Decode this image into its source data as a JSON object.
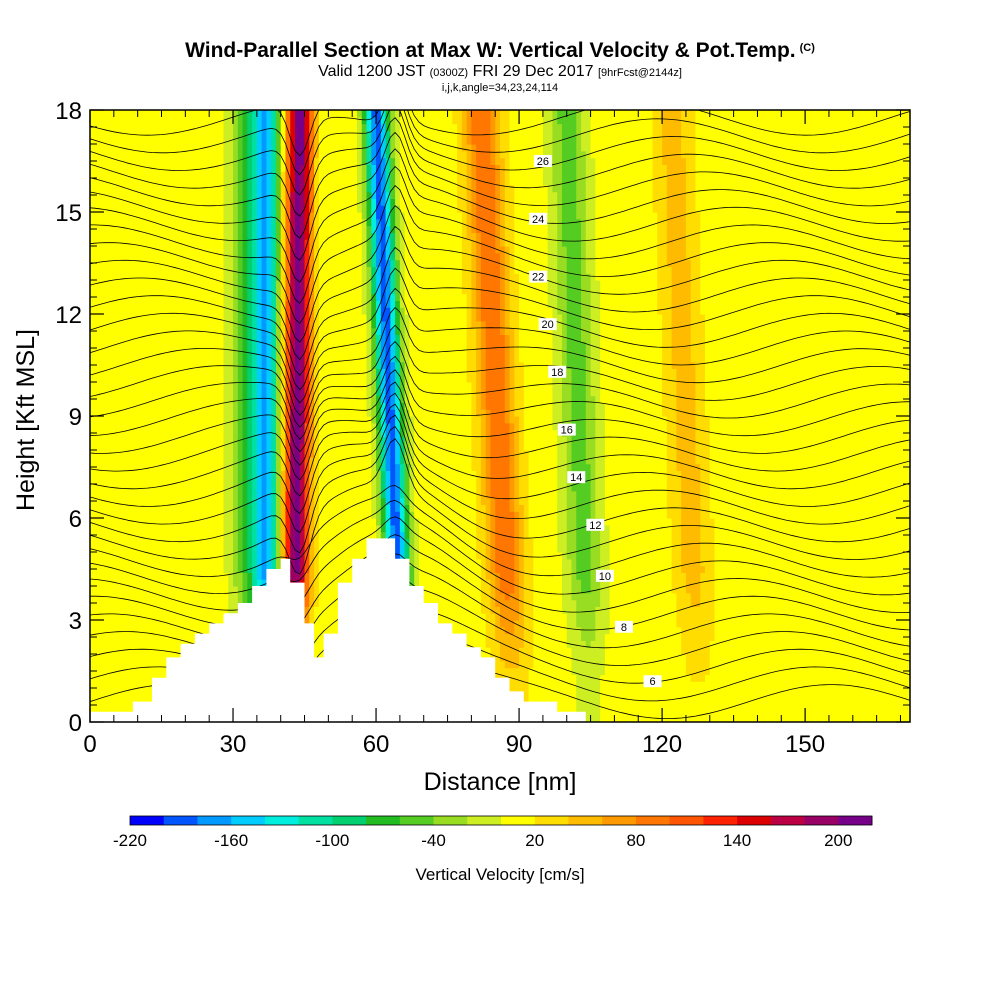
{
  "title": "Wind-Parallel Section at Max W: Vertical Velocity & Pot.Temp.",
  "copyright": "(C)",
  "subtitle_main": "Valid 1200 JST",
  "subtitle_utc": "(0300Z)",
  "subtitle_date": "FRI 29 Dec 2017",
  "subtitle_fcst": "[9hrFcst@2144z]",
  "info_line": "i,j,k,angle=34,23,24,114",
  "chart_data": {
    "type": "heatmap",
    "xlabel": "Distance [nm]",
    "ylabel": "Height [Kft MSL]",
    "xlim": [
      0,
      172
    ],
    "ylim": [
      0,
      18
    ],
    "x_ticks": [
      0,
      30,
      60,
      90,
      120,
      150
    ],
    "y_ticks": [
      0,
      3,
      6,
      9,
      12,
      15,
      18
    ],
    "colorbar": {
      "label": "Vertical Velocity [cm/s]",
      "range": [
        -220,
        220
      ],
      "tick_values": [
        -220,
        -160,
        -100,
        -40,
        20,
        80,
        140,
        200
      ],
      "tick_labels": [
        "-220",
        "-160",
        "-100",
        "-40",
        "20",
        "80",
        "140",
        "200"
      ],
      "colors": [
        "#0000ff",
        "#0055ff",
        "#0099ff",
        "#00ccff",
        "#00eedd",
        "#00e0a0",
        "#00d070",
        "#22bb22",
        "#55cc22",
        "#99dd22",
        "#ccee22",
        "#ffff00",
        "#ffdd00",
        "#ffbb00",
        "#ff9900",
        "#ff7700",
        "#ff5500",
        "#ff2200",
        "#dd0000",
        "#bb0044",
        "#990066",
        "#770088"
      ]
    },
    "updraft_bands": [
      {
        "x_bottom": 43,
        "x_top": 44,
        "peak_cm_s": 200
      },
      {
        "x_bottom": 89,
        "x_top": 82,
        "peak_cm_s": 90
      },
      {
        "x_bottom": 128,
        "x_top": 122,
        "peak_cm_s": 40
      }
    ],
    "downdraft_bands": [
      {
        "x_bottom": 37,
        "x_top": 37,
        "peak_cm_s": -150
      },
      {
        "x_bottom": 66,
        "x_top": 60,
        "peak_cm_s": -200
      },
      {
        "x_bottom": 105,
        "x_top": 100,
        "peak_cm_s": -60
      },
      {
        "x_bottom": 34,
        "x_top": 33,
        "peak_cm_s": -70
      }
    ],
    "terrain": [
      [
        0,
        0.3
      ],
      [
        9,
        0.3
      ],
      [
        9,
        0.6
      ],
      [
        13,
        0.6
      ],
      [
        13,
        1.3
      ],
      [
        16,
        1.3
      ],
      [
        16,
        1.9
      ],
      [
        19,
        1.9
      ],
      [
        19,
        2.3
      ],
      [
        22,
        2.3
      ],
      [
        22,
        2.6
      ],
      [
        25,
        2.6
      ],
      [
        25,
        2.9
      ],
      [
        28,
        2.9
      ],
      [
        28,
        3.2
      ],
      [
        31,
        3.2
      ],
      [
        31,
        3.5
      ],
      [
        34,
        3.5
      ],
      [
        34,
        4.0
      ],
      [
        37,
        4.0
      ],
      [
        37,
        4.5
      ],
      [
        40,
        4.5
      ],
      [
        40,
        4.8
      ],
      [
        42,
        4.8
      ],
      [
        42,
        4.1
      ],
      [
        45,
        4.1
      ],
      [
        45,
        2.9
      ],
      [
        47,
        2.9
      ],
      [
        47,
        1.9
      ],
      [
        49,
        1.9
      ],
      [
        49,
        2.6
      ],
      [
        52,
        2.6
      ],
      [
        52,
        4.1
      ],
      [
        55,
        4.1
      ],
      [
        55,
        4.8
      ],
      [
        58,
        4.8
      ],
      [
        58,
        5.4
      ],
      [
        64,
        5.4
      ],
      [
        64,
        4.8
      ],
      [
        67,
        4.8
      ],
      [
        67,
        4.0
      ],
      [
        70,
        4.0
      ],
      [
        70,
        3.5
      ],
      [
        73,
        3.5
      ],
      [
        73,
        2.9
      ],
      [
        76,
        2.9
      ],
      [
        76,
        2.6
      ],
      [
        79,
        2.6
      ],
      [
        79,
        2.2
      ],
      [
        82,
        2.2
      ],
      [
        82,
        1.9
      ],
      [
        85,
        1.9
      ],
      [
        85,
        1.3
      ],
      [
        88,
        1.3
      ],
      [
        88,
        0.9
      ],
      [
        91,
        0.9
      ],
      [
        91,
        0.6
      ],
      [
        98,
        0.6
      ],
      [
        98,
        0.3
      ],
      [
        104,
        0.3
      ],
      [
        104,
        0
      ],
      [
        0,
        0
      ]
    ],
    "contour_labels": [
      "6",
      "8",
      "10",
      "12",
      "14",
      "16",
      "18",
      "20",
      "22",
      "24",
      "26"
    ]
  }
}
